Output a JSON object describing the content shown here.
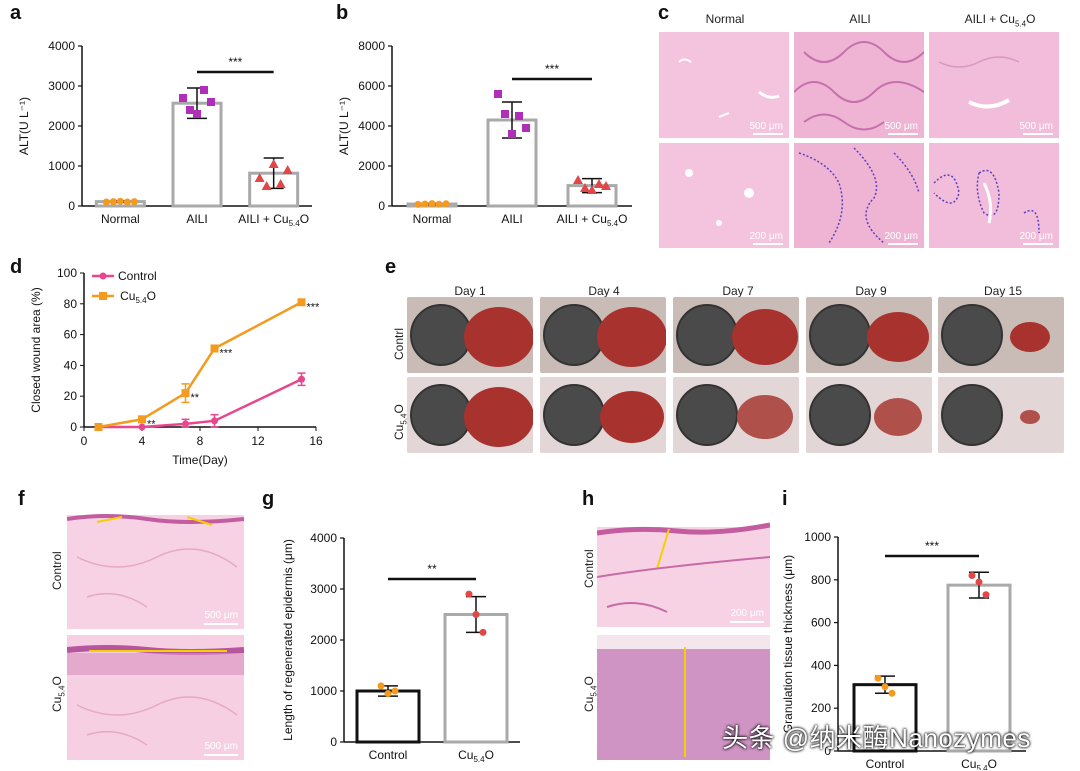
{
  "panels": {
    "a": "a",
    "b": "b",
    "c": "c",
    "d": "d",
    "e": "e",
    "f": "f",
    "g": "g",
    "h": "h",
    "i": "i"
  },
  "colors": {
    "orange": "#f39a1f",
    "purple": "#b02fb8",
    "red": "#e04848",
    "pink": "#e8478e",
    "gray_bar": "#a9a9a9",
    "black_bar": "#111111",
    "he_pink": "#f2b9d6",
    "he_dark": "#d883b8"
  },
  "chart_data": [
    {
      "id": "a",
      "type": "bar",
      "ylabel": "ALT(U L⁻¹)",
      "ylim": [
        0,
        4000
      ],
      "yticks": [
        "0",
        "1000",
        "2000",
        "3000",
        "4000"
      ],
      "categories": [
        "Normal",
        "AILI",
        "AILI + Cu5.4O"
      ],
      "values": [
        110,
        2570,
        820
      ],
      "errors": [
        20,
        380,
        380
      ],
      "points": [
        [
          100,
          110,
          120,
          100,
          110
        ],
        [
          2700,
          2400,
          2300,
          2900,
          2600
        ],
        [
          700,
          500,
          1050,
          550,
          900
        ]
      ],
      "significance": "***"
    },
    {
      "id": "b",
      "type": "bar",
      "ylabel": "ALT(U L⁻¹)",
      "ylim": [
        0,
        8000
      ],
      "yticks": [
        "0",
        "2000",
        "4000",
        "6000",
        "8000"
      ],
      "categories": [
        "Normal",
        "AILI",
        "AILI + Cu5.4O"
      ],
      "values": [
        100,
        4300,
        1020
      ],
      "errors": [
        30,
        900,
        350
      ],
      "points": [
        [
          80,
          100,
          120,
          90,
          110
        ],
        [
          5600,
          4600,
          3600,
          4500,
          3900
        ],
        [
          1300,
          900,
          800,
          1100,
          1000
        ]
      ],
      "significance": "***"
    },
    {
      "id": "d",
      "type": "line",
      "xlabel": "Time(Day)",
      "ylabel": "Closed wound area (%)",
      "xlim": [
        0,
        16
      ],
      "ylim": [
        0,
        100
      ],
      "xticks": [
        "0",
        "4",
        "8",
        "12",
        "16"
      ],
      "yticks": [
        "0",
        "20",
        "40",
        "60",
        "80",
        "100"
      ],
      "x": [
        1,
        4,
        7,
        9,
        15
      ],
      "series": [
        {
          "name": "Control",
          "values": [
            0,
            0,
            2,
            4,
            31
          ],
          "errors": [
            0,
            0,
            3,
            4,
            4
          ]
        },
        {
          "name": "Cu5.4O",
          "values": [
            0,
            5,
            22,
            51,
            81
          ],
          "errors": [
            0,
            1,
            6,
            2,
            1
          ]
        }
      ],
      "annotations": [
        "**",
        "**",
        "***",
        "***"
      ]
    },
    {
      "id": "g",
      "type": "bar",
      "ylabel": "Length of regenerated epidermis (μm)",
      "ylim": [
        0,
        4000
      ],
      "yticks": [
        "0",
        "1000",
        "2000",
        "3000",
        "4000"
      ],
      "categories": [
        "Control",
        "Cu5.4O"
      ],
      "values": [
        1000,
        2500
      ],
      "errors": [
        100,
        350
      ],
      "points": [
        [
          1100,
          950,
          1000
        ],
        [
          2900,
          2500,
          2150
        ]
      ],
      "significance": "**"
    },
    {
      "id": "i",
      "type": "bar",
      "ylabel": "Granulation tissue thickness (μm)",
      "ylim": [
        0,
        1000
      ],
      "yticks": [
        "0",
        "200",
        "400",
        "600",
        "800",
        "1000"
      ],
      "categories": [
        "Control",
        "Cu5.4O"
      ],
      "values": [
        310,
        775
      ],
      "errors": [
        40,
        60
      ],
      "points": [
        [
          340,
          300,
          270
        ],
        [
          820,
          790,
          730
        ]
      ],
      "significance": "***"
    }
  ],
  "panel_c": {
    "columns": [
      "Normal",
      "AILI",
      "AILI + Cu",
      "5.4",
      "O"
    ],
    "scale_top": "500 μm",
    "scale_bottom": "200 μm"
  },
  "panel_e": {
    "days": [
      "Day 1",
      "Day 4",
      "Day 7",
      "Day 9",
      "Day 15"
    ],
    "rows": [
      "Contrl",
      "Cu",
      "5.4",
      "O"
    ]
  },
  "panel_f": {
    "rows": [
      "Control",
      "Cu",
      "5.4",
      "O"
    ],
    "scale": "500 μm"
  },
  "panel_h": {
    "rows": [
      "Control",
      "Cu",
      "5.4",
      "O"
    ],
    "scale": "200 μm"
  },
  "labels": {
    "cu": "Cu",
    "sub": "5.4",
    "o": "O"
  },
  "watermark": "头条 @纳米酶Nanozymes"
}
